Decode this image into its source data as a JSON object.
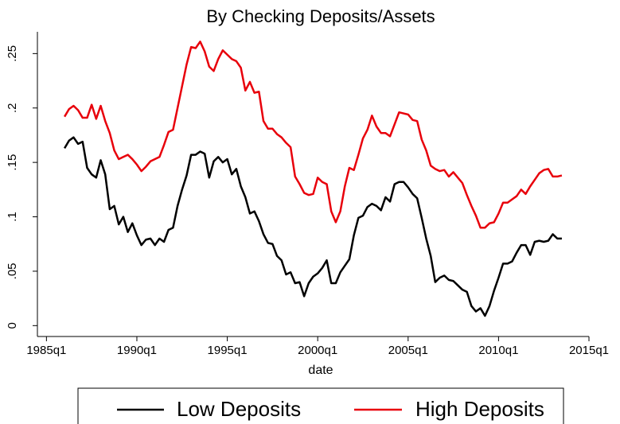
{
  "chart_data": {
    "type": "line",
    "title": "By Checking Deposits/Assets",
    "x_label": "date",
    "xlim": [
      1984.5,
      2015
    ],
    "ylim": [
      -0.01,
      0.27
    ],
    "xticks": [
      {
        "value": 1985,
        "label": "1985q1"
      },
      {
        "value": 1990,
        "label": "1990q1"
      },
      {
        "value": 1995,
        "label": "1995q1"
      },
      {
        "value": 2000,
        "label": "2000q1"
      },
      {
        "value": 2005,
        "label": "2005q1"
      },
      {
        "value": 2010,
        "label": "2010q1"
      },
      {
        "value": 2015,
        "label": "2015q1"
      }
    ],
    "yticks": [
      0,
      {
        "value": 0.05,
        "label": ".05"
      },
      {
        "value": 0.1,
        "label": ".1"
      },
      {
        "value": 0.15,
        "label": ".15"
      },
      {
        "value": 0.2,
        "label": ".2"
      },
      {
        "value": 0.25,
        "label": ".25"
      }
    ],
    "x": [
      1986,
      1986.25,
      1986.5,
      1986.75,
      1987,
      1987.25,
      1987.5,
      1987.75,
      1988,
      1988.25,
      1988.5,
      1988.75,
      1989,
      1989.25,
      1989.5,
      1989.75,
      1990,
      1990.25,
      1990.5,
      1990.75,
      1991,
      1991.25,
      1991.5,
      1991.75,
      1992,
      1992.25,
      1992.5,
      1992.75,
      1993,
      1993.25,
      1993.5,
      1993.75,
      1994,
      1994.25,
      1994.5,
      1994.75,
      1995,
      1995.25,
      1995.5,
      1995.75,
      1996,
      1996.25,
      1996.5,
      1996.75,
      1997,
      1997.25,
      1997.5,
      1997.75,
      1998,
      1998.25,
      1998.5,
      1998.75,
      1999,
      1999.25,
      1999.5,
      1999.75,
      2000,
      2000.25,
      2000.5,
      2000.75,
      2001,
      2001.25,
      2001.5,
      2001.75,
      2002,
      2002.25,
      2002.5,
      2002.75,
      2003,
      2003.25,
      2003.5,
      2003.75,
      2004,
      2004.25,
      2004.5,
      2004.75,
      2005,
      2005.25,
      2005.5,
      2005.75,
      2006,
      2006.25,
      2006.5,
      2006.75,
      2007,
      2007.25,
      2007.5,
      2007.75,
      2008,
      2008.25,
      2008.5,
      2008.75,
      2009,
      2009.25,
      2009.5,
      2009.75,
      2010,
      2010.25,
      2010.5,
      2010.75,
      2011,
      2011.25,
      2011.5,
      2011.75,
      2012,
      2012.25,
      2012.5,
      2012.75,
      2013,
      2013.25,
      2013.5
    ],
    "series": [
      {
        "name": "Low Deposits",
        "color": "#000000",
        "values": [
          0.163,
          0.17,
          0.173,
          0.167,
          0.169,
          0.145,
          0.139,
          0.136,
          0.152,
          0.139,
          0.107,
          0.11,
          0.093,
          0.1,
          0.086,
          0.094,
          0.083,
          0.074,
          0.079,
          0.08,
          0.074,
          0.08,
          0.077,
          0.088,
          0.09,
          0.11,
          0.125,
          0.138,
          0.157,
          0.157,
          0.16,
          0.158,
          0.136,
          0.151,
          0.155,
          0.15,
          0.153,
          0.139,
          0.144,
          0.128,
          0.118,
          0.103,
          0.105,
          0.096,
          0.084,
          0.076,
          0.075,
          0.064,
          0.06,
          0.047,
          0.049,
          0.039,
          0.04,
          0.027,
          0.039,
          0.045,
          0.048,
          0.053,
          0.06,
          0.039,
          0.039,
          0.049,
          0.055,
          0.061,
          0.083,
          0.099,
          0.101,
          0.109,
          0.112,
          0.11,
          0.106,
          0.118,
          0.114,
          0.13,
          0.132,
          0.132,
          0.127,
          0.121,
          0.117,
          0.099,
          0.08,
          0.064,
          0.04,
          0.044,
          0.046,
          0.042,
          0.041,
          0.037,
          0.033,
          0.031,
          0.018,
          0.013,
          0.016,
          0.009,
          0.018,
          0.032,
          0.044,
          0.057,
          0.057,
          0.059,
          0.067,
          0.074,
          0.074,
          0.065,
          0.077,
          0.078,
          0.077,
          0.078,
          0.084,
          0.08,
          0.08
        ]
      },
      {
        "name": "High Deposits",
        "color": "#e8000b",
        "values": [
          0.192,
          0.199,
          0.202,
          0.198,
          0.191,
          0.191,
          0.203,
          0.19,
          0.202,
          0.188,
          0.177,
          0.161,
          0.153,
          0.155,
          0.157,
          0.153,
          0.148,
          0.142,
          0.146,
          0.151,
          0.153,
          0.155,
          0.166,
          0.178,
          0.18,
          0.2,
          0.22,
          0.24,
          0.256,
          0.255,
          0.261,
          0.252,
          0.238,
          0.234,
          0.245,
          0.253,
          0.249,
          0.245,
          0.243,
          0.237,
          0.216,
          0.224,
          0.214,
          0.215,
          0.188,
          0.181,
          0.181,
          0.176,
          0.173,
          0.168,
          0.164,
          0.137,
          0.13,
          0.122,
          0.12,
          0.121,
          0.136,
          0.132,
          0.13,
          0.105,
          0.095,
          0.105,
          0.128,
          0.145,
          0.143,
          0.157,
          0.172,
          0.18,
          0.193,
          0.183,
          0.177,
          0.177,
          0.174,
          0.185,
          0.196,
          0.195,
          0.194,
          0.189,
          0.188,
          0.171,
          0.161,
          0.147,
          0.144,
          0.142,
          0.143,
          0.137,
          0.141,
          0.136,
          0.131,
          0.12,
          0.11,
          0.101,
          0.09,
          0.09,
          0.094,
          0.095,
          0.103,
          0.113,
          0.113,
          0.116,
          0.119,
          0.125,
          0.121,
          0.128,
          0.134,
          0.14,
          0.143,
          0.144,
          0.137,
          0.137,
          0.138
        ]
      }
    ]
  }
}
